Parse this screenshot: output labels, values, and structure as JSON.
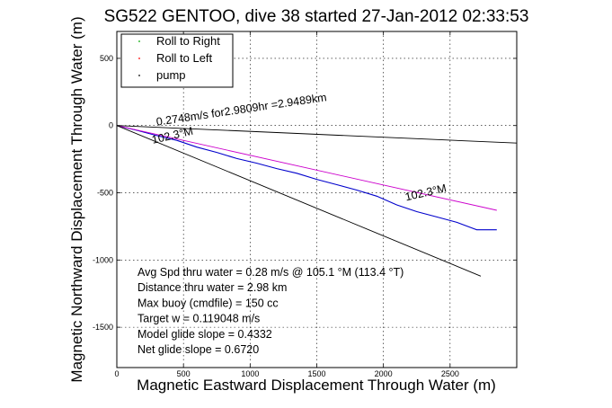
{
  "chart_data": {
    "type": "line",
    "title": "SG522 GENTOO, dive 38 started 27-Jan-2012 02:33:53",
    "xlabel": "Magnetic Eastward Displacement Through Water (m)",
    "ylabel": "Magnetic Northward Displacement Through Water (m)",
    "xlim": [
      0,
      3000
    ],
    "ylim": [
      -1800,
      700
    ],
    "xticks": [
      0,
      500,
      1000,
      1500,
      2000,
      2500
    ],
    "yticks": [
      -1500,
      -1000,
      -500,
      0,
      500
    ],
    "xtick_labels": [
      "0",
      "500",
      "1000",
      "1500",
      "2000",
      "2500"
    ],
    "ytick_labels": [
      "-1500",
      "-1000",
      "-500",
      "0",
      "500"
    ],
    "grid": true,
    "legend_position": "top-left",
    "legend": [
      {
        "label": "Roll to Right",
        "color": "#00aa00"
      },
      {
        "label": "Roll to Left",
        "color": "#ff0000"
      },
      {
        "label": "pump",
        "color": "#000000"
      }
    ],
    "series": [
      {
        "style": "track",
        "color": "#0000cc",
        "x": [
          0,
          150,
          300,
          450,
          600,
          750,
          900,
          1050,
          1200,
          1350,
          1500,
          1650,
          1800,
          1950,
          2100,
          2250,
          2400,
          2550,
          2700,
          2850
        ],
        "y": [
          0,
          -35,
          -75,
          -110,
          -160,
          -200,
          -245,
          -280,
          -320,
          -355,
          -400,
          -440,
          -480,
          -525,
          -590,
          -640,
          -680,
          -720,
          -775,
          -775
        ]
      },
      {
        "style": "heading-line",
        "color": "#cc00cc",
        "x": [
          0,
          2850
        ],
        "y": [
          0,
          -630
        ]
      },
      {
        "style": "heading-line",
        "color": "#000000",
        "x": [
          0,
          3000
        ],
        "y": [
          0,
          -130
        ]
      },
      {
        "style": "heading-line",
        "color": "#000000",
        "x": [
          0,
          2730
        ],
        "y": [
          0,
          -1120
        ]
      }
    ],
    "annotations": [
      {
        "text": "0.2748m/s for2.9809hr =2.9489km",
        "x": 300,
        "y": 0,
        "rotate": -8.3
      },
      {
        "text": "102.3°M",
        "x": 270,
        "y": -135,
        "rotate": -13
      },
      {
        "text": "102.3°M",
        "x": 2170,
        "y": -560,
        "rotate": -13
      }
    ],
    "stats": [
      "Avg Spd thru water =  0.28 m/s @ 105.1    °M (113.4 °T)",
      "Distance thru water =  2.98 km",
      "Max buoy (cmdfile) = 150 cc",
      "Target w = 0.119048 m/s",
      "Model glide slope = 0.4332",
      "Net glide slope = 0.6720"
    ]
  }
}
